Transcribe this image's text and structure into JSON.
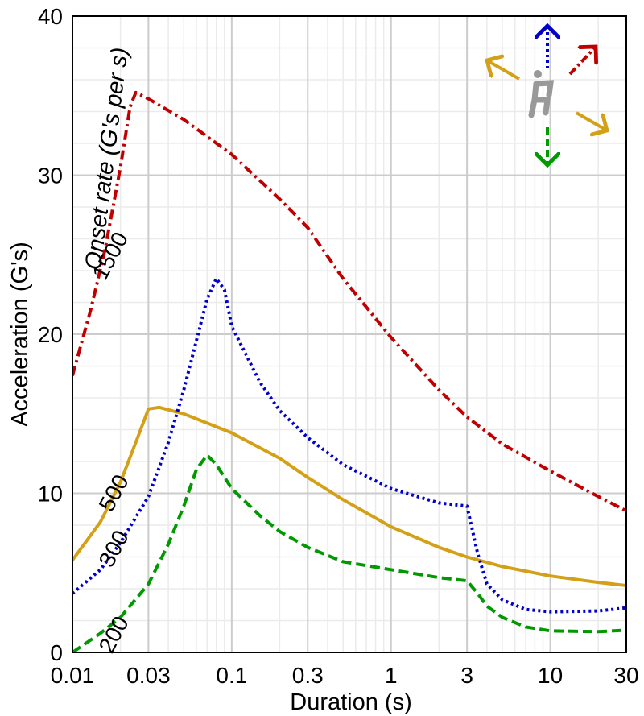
{
  "chart_data": {
    "type": "line",
    "xlabel": "Duration (s)",
    "ylabel": "Acceleration (G's)",
    "x_scale": "log",
    "xlim": [
      0.01,
      30
    ],
    "ylim": [
      0,
      40
    ],
    "grid": true,
    "x_ticks": [
      0.01,
      0.03,
      0.1,
      0.3,
      1,
      3,
      10,
      30
    ],
    "x_tick_labels": [
      "0.01",
      "0.03",
      "0.1",
      "0.3",
      "1",
      "3",
      "10",
      "30"
    ],
    "y_ticks": [
      0,
      10,
      20,
      30,
      40
    ],
    "y_tick_labels": [
      "0",
      "10",
      "20",
      "30",
      "40"
    ],
    "onset_rate_label": "Onset rate (G's per s)",
    "series": [
      {
        "label": "1500",
        "color": "#c00000",
        "dash": "dashdot",
        "points": [
          [
            0.01,
            17.4
          ],
          [
            0.013,
            21.5
          ],
          [
            0.016,
            25.3
          ],
          [
            0.02,
            30.5
          ],
          [
            0.023,
            34.3
          ],
          [
            0.025,
            35.2
          ],
          [
            0.03,
            34.8
          ],
          [
            0.05,
            33.5
          ],
          [
            0.1,
            31.3
          ],
          [
            0.2,
            28.5
          ],
          [
            0.3,
            26.7
          ],
          [
            0.5,
            23.5
          ],
          [
            1,
            19.8
          ],
          [
            2,
            16.5
          ],
          [
            3,
            14.8
          ],
          [
            5,
            13.1
          ],
          [
            10,
            11.4
          ],
          [
            20,
            9.8
          ],
          [
            30,
            8.9
          ]
        ]
      },
      {
        "label": "500",
        "color": "#d4a017",
        "dash": "solid",
        "points": [
          [
            0.01,
            5.8
          ],
          [
            0.015,
            8.2
          ],
          [
            0.02,
            10.7
          ],
          [
            0.025,
            13.2
          ],
          [
            0.03,
            15.3
          ],
          [
            0.035,
            15.4
          ],
          [
            0.05,
            15.0
          ],
          [
            0.1,
            13.8
          ],
          [
            0.2,
            12.2
          ],
          [
            0.3,
            11.0
          ],
          [
            0.5,
            9.6
          ],
          [
            1,
            7.9
          ],
          [
            2,
            6.6
          ],
          [
            3,
            6.0
          ],
          [
            5,
            5.4
          ],
          [
            10,
            4.8
          ],
          [
            20,
            4.4
          ],
          [
            30,
            4.2
          ]
        ]
      },
      {
        "label": "300",
        "color": "#0000cc",
        "dash": "dotted",
        "points": [
          [
            0.01,
            3.7
          ],
          [
            0.015,
            5.2
          ],
          [
            0.02,
            6.9
          ],
          [
            0.03,
            9.8
          ],
          [
            0.04,
            13.2
          ],
          [
            0.05,
            16.5
          ],
          [
            0.06,
            19.6
          ],
          [
            0.07,
            22.2
          ],
          [
            0.08,
            23.5
          ],
          [
            0.09,
            22.8
          ],
          [
            0.1,
            20.5
          ],
          [
            0.15,
            17.0
          ],
          [
            0.2,
            15.2
          ],
          [
            0.3,
            13.5
          ],
          [
            0.5,
            11.8
          ],
          [
            1,
            10.3
          ],
          [
            2,
            9.4
          ],
          [
            3,
            9.2
          ],
          [
            3.5,
            6.2
          ],
          [
            4,
            4.3
          ],
          [
            5,
            3.3
          ],
          [
            7,
            2.7
          ],
          [
            10,
            2.55
          ],
          [
            20,
            2.6
          ],
          [
            30,
            2.8
          ]
        ]
      },
      {
        "label": "200",
        "color": "#009900",
        "dash": "dashed",
        "points": [
          [
            0.01,
            0.0
          ],
          [
            0.015,
            1.2
          ],
          [
            0.02,
            2.2
          ],
          [
            0.03,
            4.3
          ],
          [
            0.04,
            6.8
          ],
          [
            0.05,
            9.2
          ],
          [
            0.06,
            11.5
          ],
          [
            0.07,
            12.4
          ],
          [
            0.08,
            11.8
          ],
          [
            0.1,
            10.3
          ],
          [
            0.15,
            8.6
          ],
          [
            0.2,
            7.6
          ],
          [
            0.3,
            6.6
          ],
          [
            0.5,
            5.7
          ],
          [
            1,
            5.2
          ],
          [
            2,
            4.7
          ],
          [
            3,
            4.5
          ],
          [
            3.5,
            3.7
          ],
          [
            4,
            2.9
          ],
          [
            5,
            2.2
          ],
          [
            7,
            1.6
          ],
          [
            10,
            1.35
          ],
          [
            20,
            1.3
          ],
          [
            30,
            1.4
          ]
        ]
      }
    ],
    "curve_labels": [
      {
        "text": "1500",
        "x": 0.019,
        "y": 24.7
      },
      {
        "text": "500",
        "x": 0.02,
        "y": 9.8
      },
      {
        "text": "300",
        "x": 0.02,
        "y": 6.3
      },
      {
        "text": "200",
        "x": 0.02,
        "y": 0.9
      }
    ],
    "onset_label_anchor": {
      "x": 0.015,
      "y": 24.0
    },
    "inset_arrows": [
      {
        "name": "up",
        "color": "#0000cc",
        "style": "dotted"
      },
      {
        "name": "down",
        "color": "#009900",
        "style": "dashed"
      },
      {
        "name": "forward",
        "color": "#c00000",
        "style": "dashdot"
      },
      {
        "name": "back",
        "color": "#d4a017",
        "style": "solid"
      },
      {
        "name": "side",
        "color": "#d4a017",
        "style": "solid"
      }
    ]
  }
}
